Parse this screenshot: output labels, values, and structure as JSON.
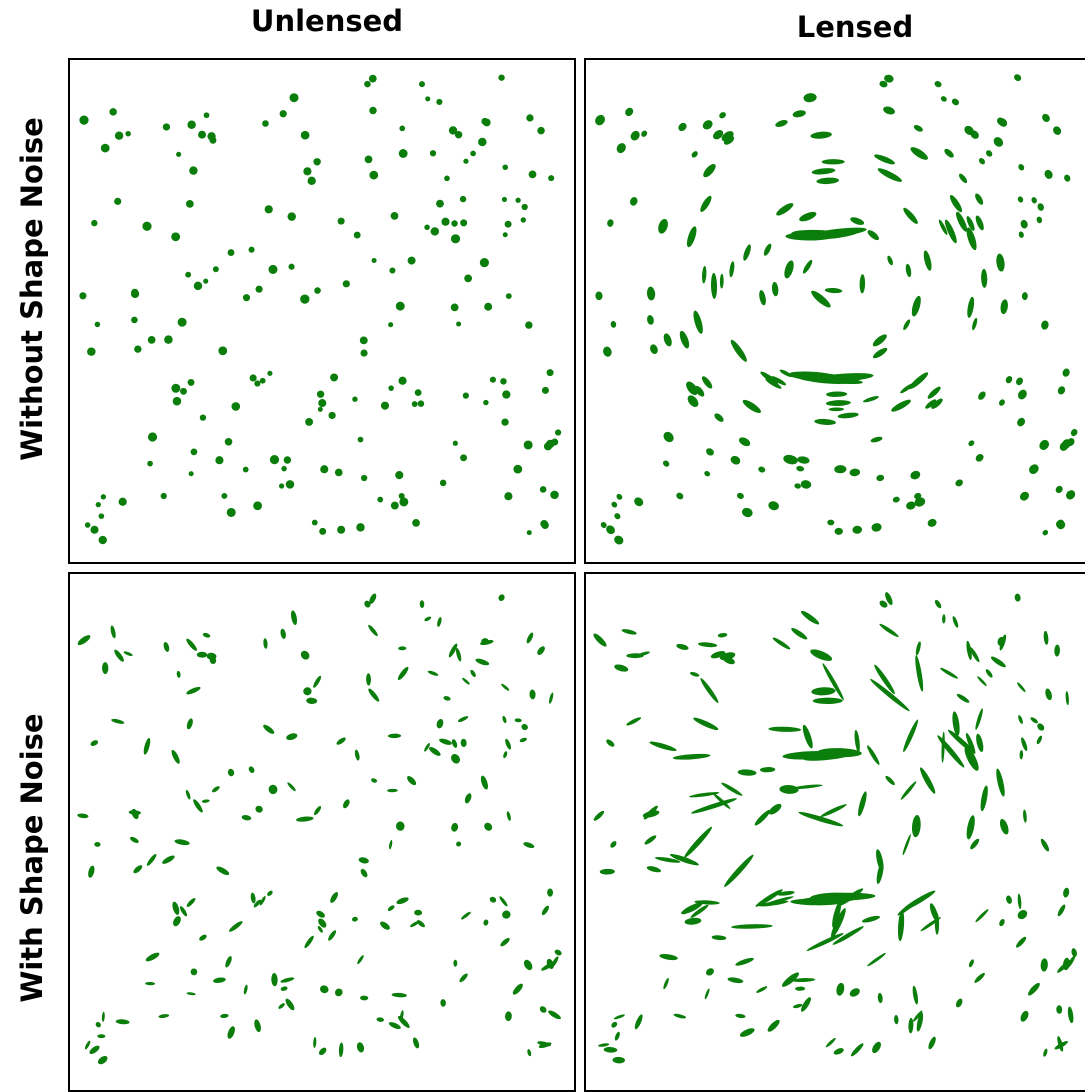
{
  "column_titles": {
    "left": "Unlensed",
    "right": "Lensed"
  },
  "row_titles": {
    "top": "Without Shape Noise",
    "bottom": "With Shape Noise"
  },
  "colors": {
    "galaxy": "#0a7d0a",
    "frame": "#000000",
    "background": "#ffffff"
  },
  "panels": [
    {
      "id": "unlensed-no-noise",
      "row": "top",
      "column": "left",
      "lensed": false,
      "shape_noise": false
    },
    {
      "id": "lensed-no-noise",
      "row": "top",
      "column": "right",
      "lensed": true,
      "shape_noise": false
    },
    {
      "id": "unlensed-with-noise",
      "row": "bottom",
      "column": "left",
      "lensed": false,
      "shape_noise": true
    },
    {
      "id": "lensed-with-noise",
      "row": "bottom",
      "column": "right",
      "lensed": true,
      "shape_noise": true
    }
  ]
}
